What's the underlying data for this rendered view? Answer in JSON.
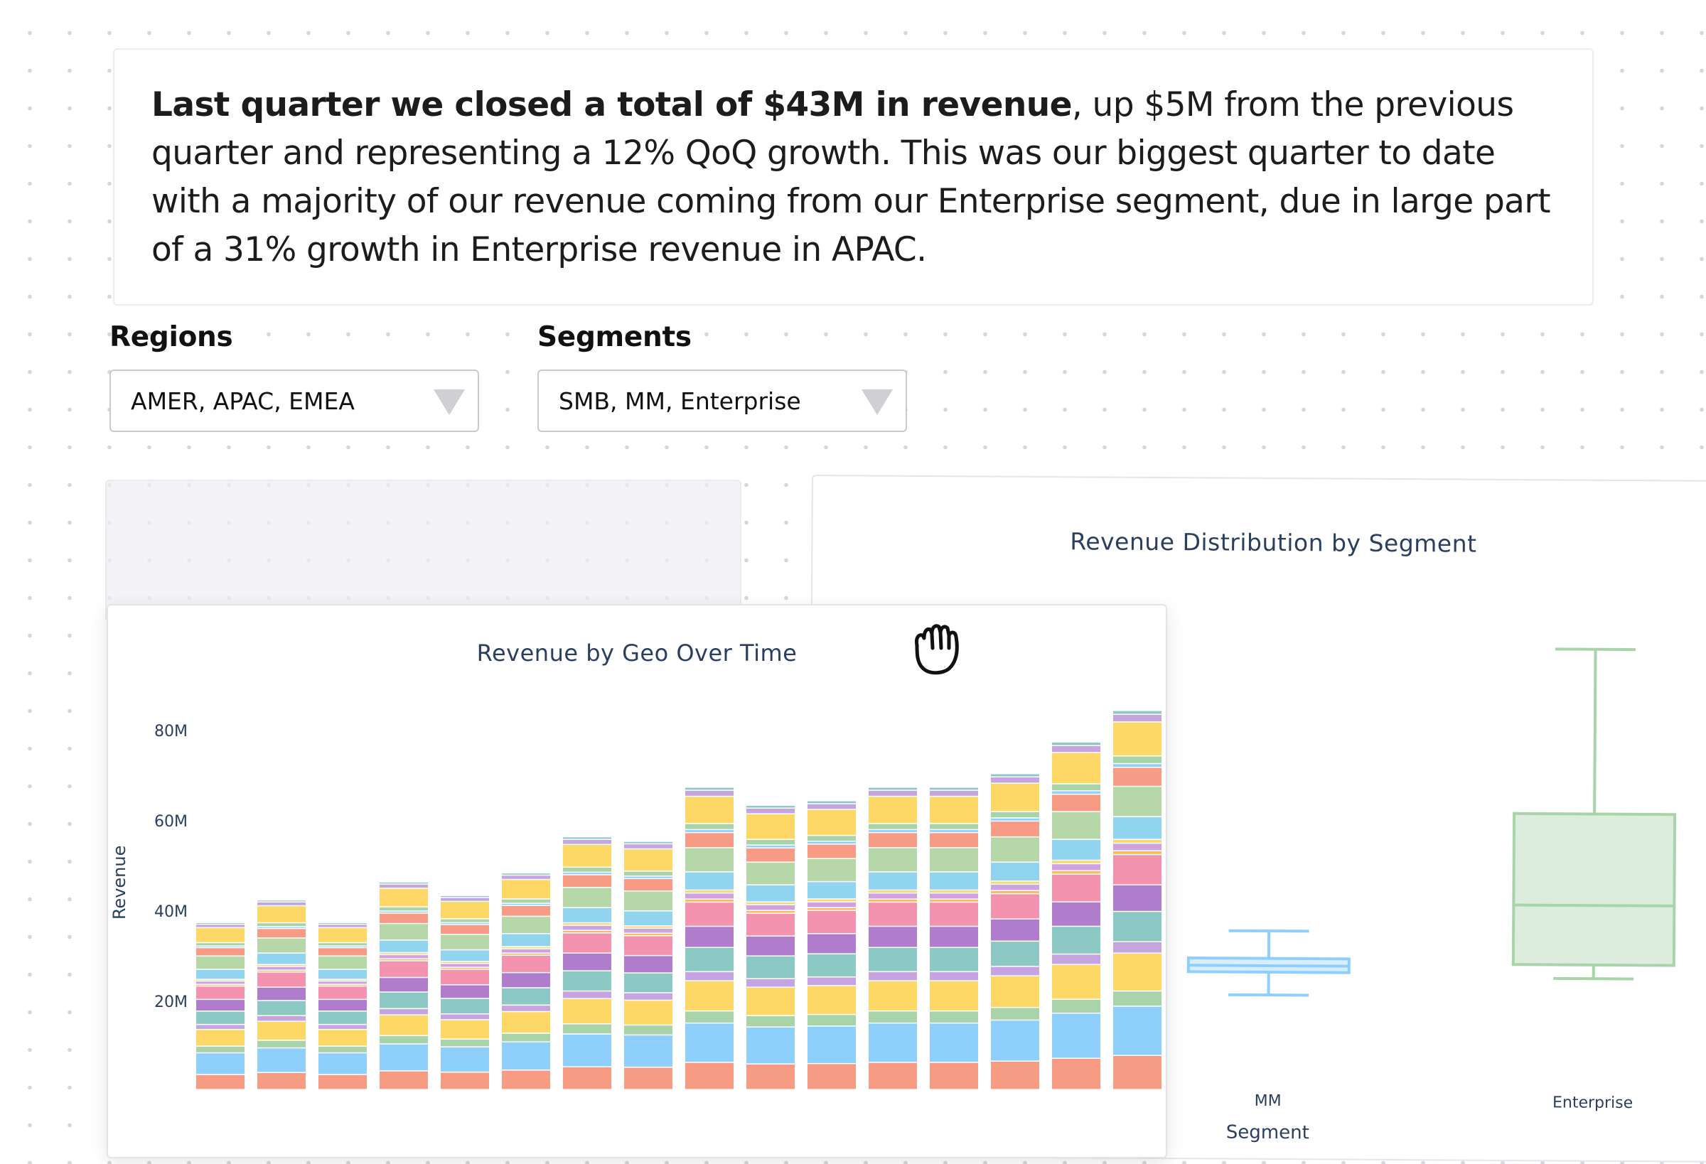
{
  "summary": {
    "bold_text": "Last quarter we closed a total of $43M in revenue",
    "rest_text": ", up $5M from the previous quarter and representing a 12% QoQ growth. This was  our biggest quarter to date with a majority of our revenue coming from our Enterprise segment, due in large part of a 31% growth in Enterprise revenue in APAC."
  },
  "filters": {
    "regions": {
      "label": "Regions",
      "value": "AMER, APAC, EMEA"
    },
    "segments": {
      "label": "Segments",
      "value": "SMB, MM, Enterprise"
    }
  },
  "colors": {
    "stack": [
      "#f89b84",
      "#8fcffb",
      "#a9d3a9",
      "#fdd866",
      "#c6a4e0",
      "#8cc9c4",
      "#b07ccc",
      "#f393b0",
      "#f9bb5c",
      "#cfa3df",
      "#f7d86b",
      "#90d4f0",
      "#b6d8a8"
    ],
    "mm_box": "#8fcffb",
    "enterprise_box": "#a9d3a9"
  },
  "chart_data": [
    {
      "type": "bar",
      "title": "Revenue by Geo Over Time",
      "ylabel": "Revenue",
      "yticks": [
        "20M",
        "40M",
        "60M",
        "80M"
      ],
      "ylim": [
        0,
        100
      ],
      "stacked": true,
      "totals": [
        37,
        42,
        37,
        46,
        43,
        48,
        56,
        55,
        67,
        63,
        64,
        67,
        67,
        70,
        77,
        84
      ]
    },
    {
      "type": "box",
      "title": "Revenue Distribution by Segment",
      "xlabel": "Segment",
      "categories": [
        "MM",
        "Enterprise"
      ],
      "boxes": [
        {
          "name": "MM",
          "min": 2.0,
          "q1": 4.5,
          "median": 5.2,
          "q3": 6.0,
          "max": 9.0
        },
        {
          "name": "Enterprise",
          "min": 4.0,
          "q1": 5.5,
          "median": 12.0,
          "q3": 22.0,
          "max": 40.0
        }
      ]
    }
  ]
}
